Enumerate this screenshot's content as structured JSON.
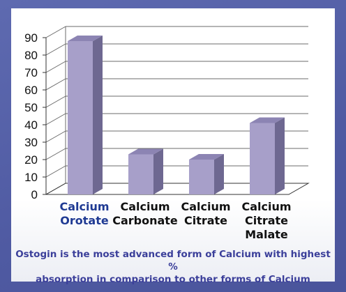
{
  "chart_data": {
    "type": "bar",
    "categories": [
      [
        "Calcium",
        "Orotate"
      ],
      [
        "Calcium",
        "Carbonate"
      ],
      [
        "Calcium",
        "Citrate"
      ],
      [
        "Calcium",
        "Citrate",
        "Malate"
      ]
    ],
    "values": [
      88,
      23,
      20,
      41
    ],
    "ylim": [
      0,
      90
    ],
    "yticks": [
      "0",
      "10",
      "20",
      "30",
      "40",
      "50",
      "60",
      "70",
      "80",
      "90"
    ],
    "grid": true,
    "title": "",
    "xlabel": "",
    "ylabel": "",
    "colors": {
      "bar_front": "#a79fc9",
      "bar_side": "#6e6891",
      "bar_top": "#8c84b3",
      "highlight_label": "#1f3a93",
      "label": "#111111"
    },
    "highlight_index": 0
  },
  "caption": {
    "line1": "Ostogin is the most advanced form of Calcium with highest %",
    "line2": "absorption in comparison to other forms of Calcium"
  }
}
